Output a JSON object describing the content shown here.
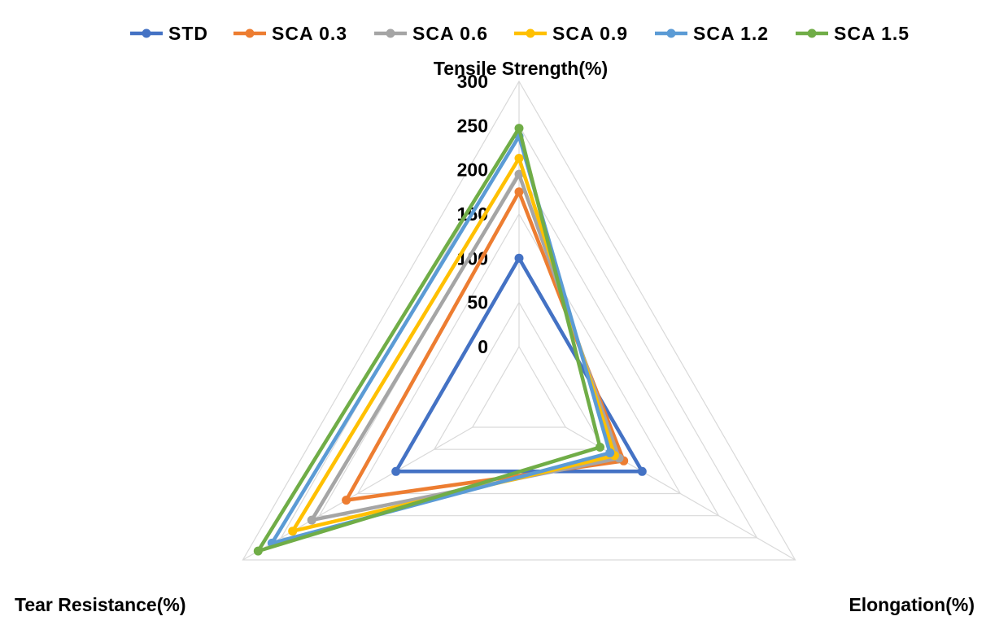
{
  "chart_data": {
    "type": "radar",
    "axes": [
      "Tensile Strength(%)",
      "Elongation(%)",
      "Tear Resistance(%)"
    ],
    "ticks": [
      0,
      50,
      100,
      150,
      200,
      250,
      300
    ],
    "rlim": [
      0,
      300
    ],
    "legend_position": "top",
    "series": [
      {
        "name": "STD",
        "color": "#4472C4",
        "values": [
          100,
          100,
          100
        ]
      },
      {
        "name": "SCA 0.3",
        "color": "#ED7D31",
        "values": [
          175,
          76,
          165
        ]
      },
      {
        "name": "SCA 0.6",
        "color": "#A5A5A5",
        "values": [
          195,
          70,
          210
        ]
      },
      {
        "name": "SCA 0.9",
        "color": "#FFC000",
        "values": [
          213,
          64,
          235
        ]
      },
      {
        "name": "SCA 1.2",
        "color": "#5B9BD5",
        "values": [
          238,
          58,
          262
        ]
      },
      {
        "name": "SCA 1.5",
        "color": "#70AD47",
        "values": [
          247,
          45,
          280
        ]
      }
    ]
  }
}
